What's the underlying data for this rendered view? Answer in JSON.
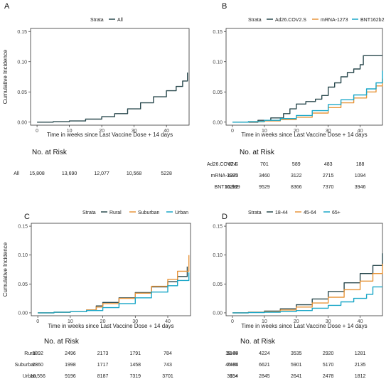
{
  "chart_data": [
    {
      "panel": "A",
      "type": "line",
      "legend_title": "Strata",
      "legend_position": "top",
      "xlabel": "Time in weeks since Last Vaccine Dose + 14 days",
      "ylabel": "Cumulative Incidence",
      "xlim": [
        -2,
        47
      ],
      "ylim": [
        -0.005,
        0.155
      ],
      "x_ticks": [
        "0",
        "10",
        "20",
        "30",
        "40"
      ],
      "x_tick_values": [
        0,
        10,
        20,
        30,
        40
      ],
      "y_ticks": [
        "0.00",
        "0.05",
        "0.10",
        "0.15"
      ],
      "y_tick_values": [
        0,
        0.05,
        0.1,
        0.15
      ],
      "grid": false,
      "series": [
        {
          "name": "All",
          "color": "#2b4a4f",
          "x": [
            0,
            5,
            10,
            15,
            20,
            24,
            28,
            32,
            36,
            40,
            43,
            45,
            46.5
          ],
          "y": [
            0,
            0.0008,
            0.002,
            0.005,
            0.009,
            0.014,
            0.022,
            0.032,
            0.042,
            0.052,
            0.059,
            0.068,
            0.082
          ]
        }
      ],
      "risk_table": {
        "title": "No. at Risk",
        "rows": [
          {
            "label": "All",
            "values": [
              "15,808",
              "13,690",
              "12,077",
              "10,568",
              "5228"
            ]
          }
        ]
      }
    },
    {
      "panel": "B",
      "type": "line",
      "legend_title": "Strata",
      "legend_position": "top",
      "xlabel": "Time in weeks since Last Vaccine Dose + 14 days",
      "ylabel": "",
      "xlim": [
        -2,
        47
      ],
      "ylim": [
        -0.005,
        0.155
      ],
      "x_ticks": [
        "0",
        "10",
        "20",
        "30",
        "40"
      ],
      "x_tick_values": [
        0,
        10,
        20,
        30,
        40
      ],
      "y_ticks": [
        "0.00",
        "0.05",
        "0.10",
        "0.15"
      ],
      "y_tick_values": [
        0,
        0.05,
        0.1,
        0.15
      ],
      "grid": false,
      "series": [
        {
          "name": "Ad26.COV2.S",
          "color": "#2b4a4f",
          "x": [
            0,
            8,
            12,
            16,
            18,
            20,
            23,
            26,
            28,
            30,
            32,
            34,
            36,
            38,
            40,
            41,
            47
          ],
          "y": [
            0,
            0.003,
            0.007,
            0.014,
            0.022,
            0.03,
            0.034,
            0.038,
            0.044,
            0.058,
            0.065,
            0.075,
            0.082,
            0.088,
            0.095,
            0.11,
            0.11
          ]
        },
        {
          "name": "mRNA-1273",
          "color": "#e8963c",
          "x": [
            0,
            5,
            10,
            15,
            20,
            25,
            30,
            34,
            38,
            42,
            45,
            47
          ],
          "y": [
            0,
            0.0005,
            0.002,
            0.004,
            0.008,
            0.015,
            0.024,
            0.032,
            0.04,
            0.05,
            0.06,
            0.072
          ]
        },
        {
          "name": "BNT162b2",
          "color": "#1aa7c8",
          "x": [
            0,
            5,
            10,
            15,
            20,
            25,
            30,
            34,
            38,
            42,
            45,
            47
          ],
          "y": [
            0,
            0.001,
            0.003,
            0.006,
            0.011,
            0.019,
            0.029,
            0.037,
            0.045,
            0.055,
            0.065,
            0.085
          ]
        }
      ],
      "risk_table": {
        "title": "No. at Risk",
        "rows": [
          {
            "label": "Ad26.COV2.S",
            "values": [
              "824",
              "701",
              "589",
              "483",
              "188"
            ]
          },
          {
            "label": "mRNA-1273",
            "values": [
              "3985",
              "3460",
              "3122",
              "2715",
              "1094"
            ]
          },
          {
            "label": "BNT162b2",
            "values": [
              "10,999",
              "9529",
              "8366",
              "7370",
              "3946"
            ]
          }
        ]
      }
    },
    {
      "panel": "C",
      "type": "line",
      "legend_title": "Strata",
      "legend_position": "top",
      "xlabel": "Time in weeks since Last Vaccine Dose + 14 days",
      "ylabel": "Cumulative Incidence",
      "xlim": [
        -2,
        47
      ],
      "ylim": [
        -0.005,
        0.155
      ],
      "x_ticks": [
        "0",
        "10",
        "20",
        "30",
        "40"
      ],
      "x_tick_values": [
        0,
        10,
        20,
        30,
        40
      ],
      "y_ticks": [
        "0.00",
        "0.05",
        "0.10",
        "0.15"
      ],
      "y_tick_values": [
        0,
        0.05,
        0.1,
        0.15
      ],
      "grid": false,
      "series": [
        {
          "name": "Rural",
          "color": "#2b4a4f",
          "x": [
            0,
            5,
            10,
            15,
            18,
            20,
            25,
            30,
            35,
            40,
            43,
            46
          ],
          "y": [
            0,
            0.001,
            0.002,
            0.005,
            0.012,
            0.018,
            0.026,
            0.035,
            0.045,
            0.054,
            0.063,
            0.08
          ]
        },
        {
          "name": "Suburban",
          "color": "#e8963c",
          "x": [
            0,
            5,
            10,
            15,
            18,
            20,
            25,
            30,
            35,
            40,
            43,
            46.5
          ],
          "y": [
            0,
            0.001,
            0.002,
            0.005,
            0.01,
            0.016,
            0.025,
            0.034,
            0.046,
            0.058,
            0.072,
            0.1
          ]
        },
        {
          "name": "Urban",
          "color": "#1aa7c8",
          "x": [
            0,
            5,
            10,
            15,
            20,
            25,
            30,
            35,
            40,
            43,
            46.5
          ],
          "y": [
            0,
            0.001,
            0.002,
            0.004,
            0.009,
            0.016,
            0.026,
            0.036,
            0.047,
            0.056,
            0.07
          ]
        }
      ],
      "risk_table": {
        "title": "No. at Risk",
        "rows": [
          {
            "label": "Rural",
            "values": [
              "2892",
              "2496",
              "2173",
              "1791",
              "784"
            ]
          },
          {
            "label": "Suburban",
            "values": [
              "2360",
              "1998",
              "1717",
              "1458",
              "743"
            ]
          },
          {
            "label": "Urban",
            "values": [
              "10,556",
              "9196",
              "8187",
              "7319",
              "3701"
            ]
          }
        ]
      }
    },
    {
      "panel": "D",
      "type": "line",
      "legend_title": "Strata",
      "legend_position": "top",
      "xlabel": "Time in weeks since Last Vaccine Dose + 14 days",
      "ylabel": "",
      "xlim": [
        -2,
        47
      ],
      "ylim": [
        -0.005,
        0.155
      ],
      "x_ticks": [
        "0",
        "10",
        "20",
        "30",
        "40"
      ],
      "x_tick_values": [
        0,
        10,
        20,
        30,
        40
      ],
      "y_ticks": [
        "0.00",
        "0.05",
        "0.10",
        "0.15"
      ],
      "y_tick_values": [
        0,
        0.05,
        0.1,
        0.15
      ],
      "grid": false,
      "series": [
        {
          "name": "18-44",
          "color": "#2b4a4f",
          "x": [
            0,
            5,
            10,
            15,
            20,
            25,
            30,
            35,
            40,
            44,
            47
          ],
          "y": [
            0,
            0.001,
            0.003,
            0.007,
            0.014,
            0.024,
            0.037,
            0.052,
            0.068,
            0.082,
            0.103
          ]
        },
        {
          "name": "45-64",
          "color": "#e8963c",
          "x": [
            0,
            5,
            10,
            15,
            20,
            25,
            30,
            35,
            40,
            44,
            47
          ],
          "y": [
            0,
            0.0008,
            0.002,
            0.005,
            0.01,
            0.017,
            0.027,
            0.04,
            0.055,
            0.068,
            0.085
          ]
        },
        {
          "name": "65+",
          "color": "#1aa7c8",
          "x": [
            0,
            5,
            10,
            15,
            20,
            25,
            30,
            34,
            38,
            42,
            44,
            47
          ],
          "y": [
            0,
            0.0004,
            0.001,
            0.002,
            0.004,
            0.008,
            0.013,
            0.019,
            0.025,
            0.032,
            0.045,
            0.045
          ]
        }
      ],
      "risk_table": {
        "title": "No. at Risk",
        "rows": [
          {
            "label": "18-44",
            "values": [
              "5169",
              "4224",
              "3535",
              "2920",
              "1281"
            ]
          },
          {
            "label": "45-64",
            "values": [
              "7485",
              "6621",
              "5901",
              "5170",
              "2135"
            ]
          },
          {
            "label": "65+",
            "values": [
              "3154",
              "2845",
              "2641",
              "2478",
              "1812"
            ]
          }
        ]
      }
    }
  ]
}
